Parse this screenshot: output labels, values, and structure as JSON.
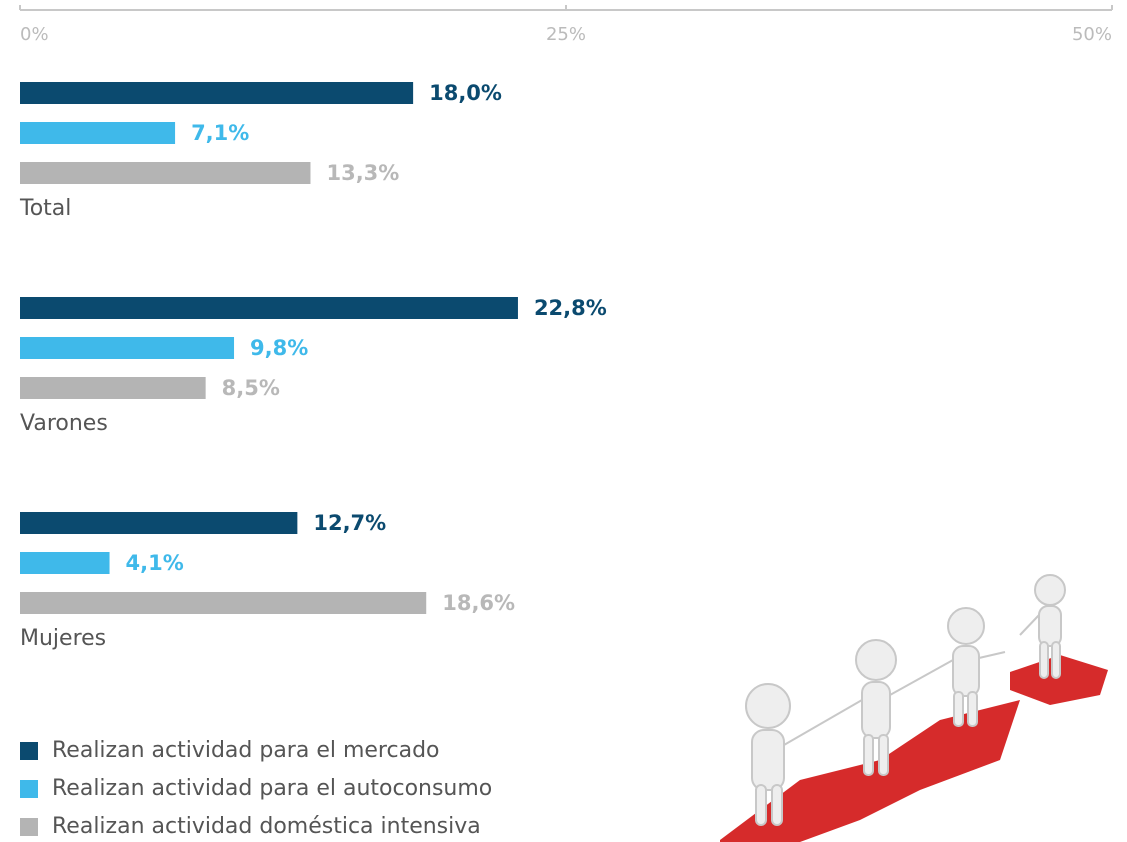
{
  "chart_data": {
    "type": "bar",
    "orientation": "horizontal",
    "categories": [
      "Total",
      "Varones",
      "Mujeres"
    ],
    "series": [
      {
        "name": "Realizan actividad para el mercado",
        "color": "#0b4a6f",
        "values": [
          18.0,
          22.8,
          12.7
        ],
        "value_labels": [
          "18,0%",
          "22,8%",
          "12,7%"
        ]
      },
      {
        "name": "Realizan actividad para el autoconsumo",
        "color": "#3fb9ea",
        "values": [
          7.1,
          9.8,
          4.1
        ],
        "value_labels": [
          "7,1%",
          "9,8%",
          "4,1%"
        ]
      },
      {
        "name": "Realizan actividad doméstica intensiva",
        "color": "#b4b4b4",
        "values": [
          13.3,
          8.5,
          18.6
        ],
        "value_labels": [
          "13,3%",
          "8,5%",
          "18,6%"
        ]
      }
    ],
    "xlim": [
      0,
      50
    ],
    "xticks": [
      {
        "value": 0,
        "label": "0%"
      },
      {
        "value": 25,
        "label": "25%"
      },
      {
        "value": 50,
        "label": "50%"
      }
    ],
    "legend": "bottom-left"
  }
}
